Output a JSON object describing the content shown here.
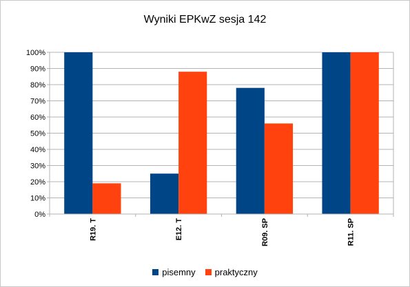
{
  "chart_data": {
    "type": "bar",
    "title": "Wyniki EPKwZ sesja 142",
    "categories": [
      "R19. T",
      "E12. T",
      "R09. SP",
      "R11. SP"
    ],
    "series": [
      {
        "name": "pisemny",
        "color": "#004586",
        "values": [
          100,
          25,
          78,
          100
        ]
      },
      {
        "name": "praktyczny",
        "color": "#ff420e",
        "values": [
          19,
          88,
          56,
          100
        ]
      }
    ],
    "yticks": [
      "0%",
      "10%",
      "20%",
      "30%",
      "40%",
      "50%",
      "60%",
      "70%",
      "80%",
      "90%",
      "100%"
    ],
    "ylim": [
      0,
      100
    ],
    "grid": true,
    "legend": "bottom"
  }
}
